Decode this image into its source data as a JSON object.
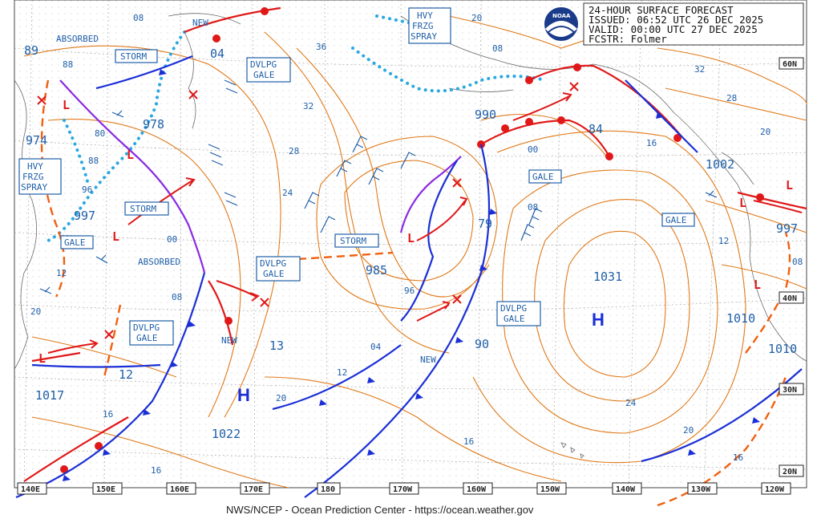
{
  "header": {
    "line1": "24-HOUR SURFACE FORECAST",
    "line2": "ISSUED: 06:52 UTC 26 DEC 2025",
    "line3": "VALID:  00:00 UTC 27 DEC 2025",
    "line4": "FCSTR:  Folmer"
  },
  "logo": {
    "label": "NOAA"
  },
  "footer": "NWS/NCEP - Ocean Prediction Center - https://ocean.weather.gov",
  "longitude_labels": [
    "140E",
    "150E",
    "160E",
    "170E",
    "180",
    "170W",
    "160W",
    "150W",
    "140W",
    "130W",
    "120W"
  ],
  "latitude_labels": [
    "60N",
    "40N",
    "30N",
    "20N"
  ],
  "pressure_centers": [
    {
      "kind": "H",
      "value": "1031"
    },
    {
      "kind": "H",
      "value": "1022"
    },
    {
      "kind": "L",
      "value": "985"
    },
    {
      "kind": "L",
      "value": "990"
    },
    {
      "kind": "L",
      "value": "978"
    },
    {
      "kind": "L",
      "value": "974"
    },
    {
      "kind": "L",
      "value": "997"
    },
    {
      "kind": "L",
      "value": "1002"
    },
    {
      "kind": "L",
      "value": "1010"
    },
    {
      "kind": "L",
      "value": "1017"
    }
  ],
  "boxed_labels": [
    "HVY FRZG SPRAY",
    "STORM",
    "DVLPG GALE",
    "GALE",
    "ABSORBED",
    "NEW"
  ],
  "colors": {
    "isobar": "#e07a1a",
    "label_blue": "#1f5fa8",
    "warm_front": "#e01818",
    "cold_front": "#1a2fd6",
    "occluded": "#8a2be2",
    "ice_edge": "#2aa8e0"
  }
}
